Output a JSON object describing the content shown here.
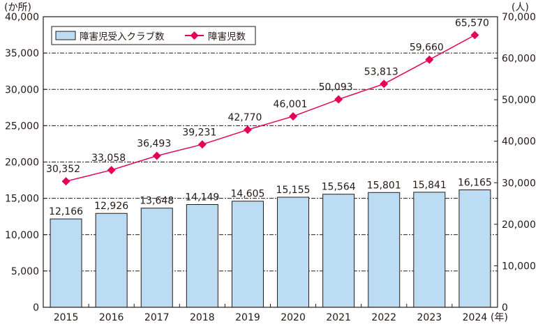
{
  "chart_data": {
    "type": "bar+line",
    "categories": [
      "2015",
      "2016",
      "2017",
      "2018",
      "2019",
      "2020",
      "2021",
      "2022",
      "2023",
      "2024"
    ],
    "series": [
      {
        "name": "障害児受入クラブ数",
        "type": "bar",
        "axis": "left",
        "values": [
          12166,
          12926,
          13648,
          14149,
          14605,
          15155,
          15564,
          15801,
          15841,
          16165
        ],
        "labels": [
          "12,166",
          "12,926",
          "13,648",
          "14,149",
          "14,605",
          "15,155",
          "15,564",
          "15,801",
          "15,841",
          "16,165"
        ]
      },
      {
        "name": "障害児数",
        "type": "line",
        "axis": "right",
        "values": [
          30352,
          33058,
          36493,
          39231,
          42770,
          46001,
          50093,
          53813,
          59660,
          65570
        ],
        "labels": [
          "30,352",
          "33,058",
          "36,493",
          "39,231",
          "42,770",
          "46,001",
          "50,093",
          "53,813",
          "59,660",
          "65,570"
        ]
      }
    ],
    "left_axis": {
      "unit": "(か所)",
      "ylim": [
        0,
        40000
      ],
      "ticks": [
        "0",
        "5,000",
        "10,000",
        "15,000",
        "20,000",
        "25,000",
        "30,000",
        "35,000",
        "40,000"
      ]
    },
    "right_axis": {
      "unit": "(人)",
      "ylim": [
        0,
        70000
      ],
      "ticks": [
        "0",
        "10,000",
        "20,000",
        "30,000",
        "40,000",
        "50,000",
        "60,000",
        "70,000"
      ]
    },
    "x_unit": "(年)",
    "legend": "top-left",
    "grid": true,
    "colors": {
      "bar": "#bcdcf3",
      "bar_border": "#231815",
      "line": "#e5005a"
    }
  }
}
